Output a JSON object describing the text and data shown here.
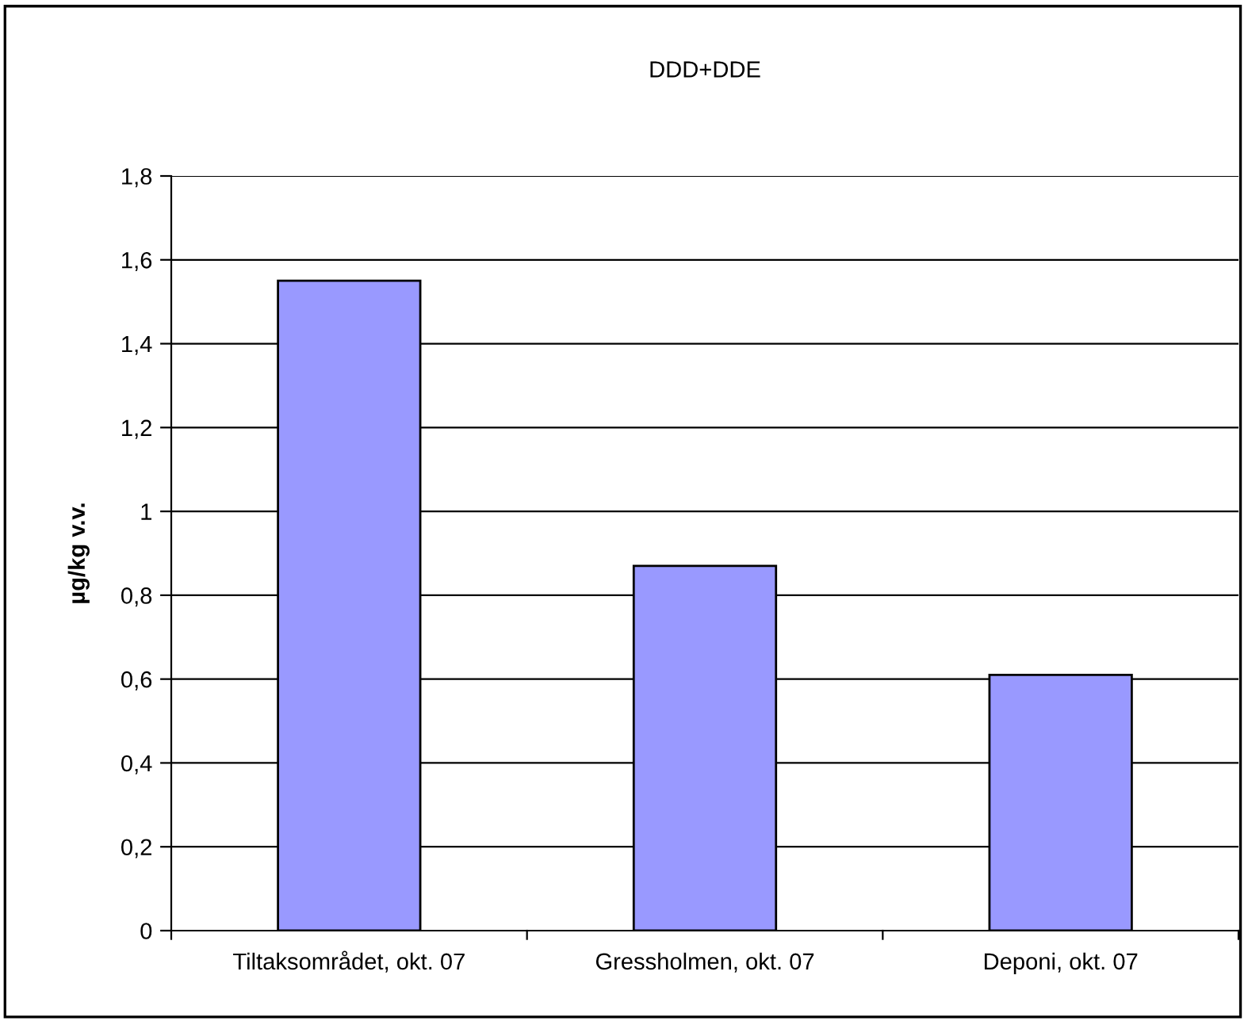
{
  "chart_data": {
    "type": "bar",
    "title": "DDD+DDE",
    "ylabel": "µg/kg v.v.",
    "categories": [
      "Tiltaksområdet, okt. 07",
      "Gressholmen, okt. 07",
      "Deponi, okt. 07"
    ],
    "values": [
      1.55,
      0.87,
      0.61
    ],
    "color": "#9999ff",
    "ylim": [
      0,
      1.8
    ],
    "yticks": [
      0,
      {
        "value": 0.2,
        "label": "0,2"
      },
      {
        "value": 0.4,
        "label": "0,4"
      },
      {
        "value": 0.6,
        "label": "0,6"
      },
      {
        "value": 0.8,
        "label": "0,8"
      },
      1,
      {
        "value": 1.2,
        "label": "1,2"
      },
      {
        "value": 1.4,
        "label": "1,4"
      },
      {
        "value": 1.6,
        "label": "1,6"
      },
      {
        "value": 1.8,
        "label": "1,8"
      }
    ],
    "grid": "y",
    "legend": false
  }
}
